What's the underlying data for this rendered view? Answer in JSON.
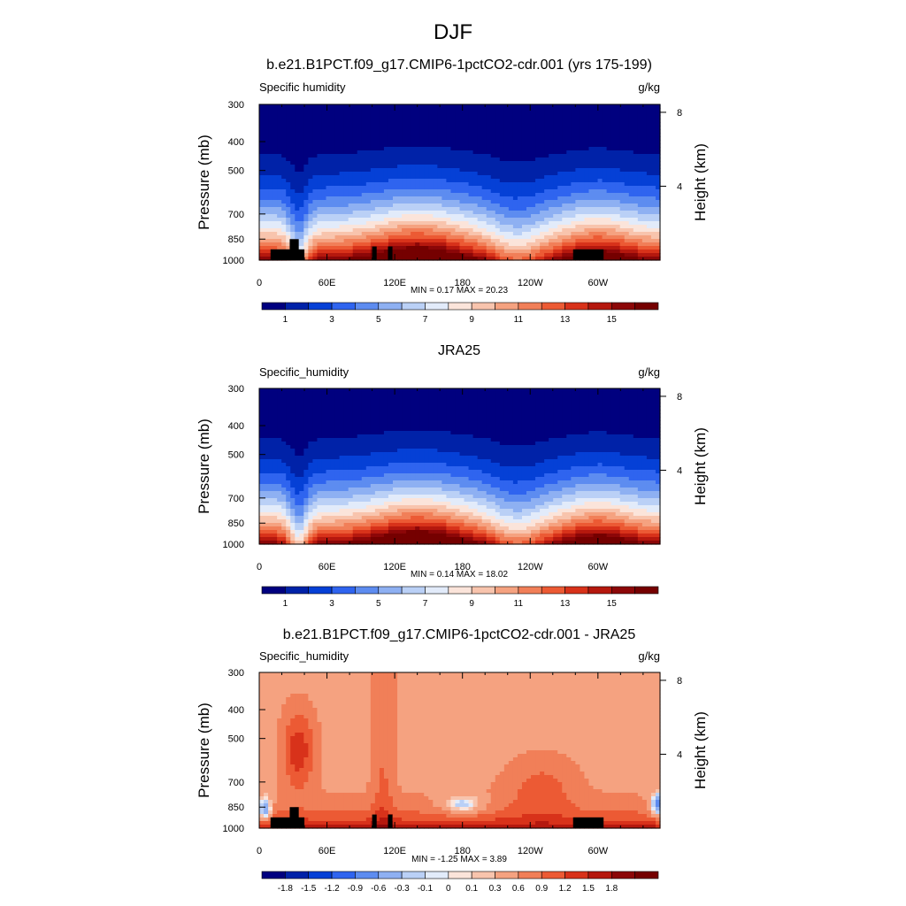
{
  "page_title": "DJF",
  "colorbar_full": {
    "colors": [
      "#00007f",
      "#0022a8",
      "#0540d6",
      "#2f64ef",
      "#5d8cf0",
      "#8eb0f2",
      "#bad0f6",
      "#e2ebfa",
      "#fbe4da",
      "#f8c4ad",
      "#f5a280",
      "#f17f58",
      "#ec5a34",
      "#d8321a",
      "#b5180e",
      "#8c0708",
      "#750000"
    ],
    "ticks": [
      "1",
      "3",
      "5",
      "7",
      "9",
      "11",
      "13",
      "15"
    ]
  },
  "colorbar_diff": {
    "colors": [
      "#00007f",
      "#0022a8",
      "#0540d6",
      "#2f64ef",
      "#5d8cf0",
      "#8eb0f2",
      "#bad0f6",
      "#e2ebfa",
      "#fbe4da",
      "#f8c4ad",
      "#f5a280",
      "#f17f58",
      "#ec5a34",
      "#d8321a",
      "#b5180e",
      "#8c0708",
      "#750000"
    ],
    "ticks": [
      "-1.8",
      "-1.5",
      "-1.2",
      "-0.9",
      "-0.6",
      "-0.3",
      "-0.1",
      "0",
      "0.1",
      "0.3",
      "0.6",
      "0.9",
      "1.2",
      "1.5",
      "1.8"
    ]
  },
  "chart_data": [
    {
      "type": "heatmap",
      "title": "b.e21.B1PCT.f09_g17.CMIP6-1pctCO2-cdr.001 (yrs 175-199)",
      "variable": "Specific humidity",
      "units": "g/kg",
      "ylabel": "Pressure (mb)",
      "ylabel_right": "Height (km)",
      "xticks": [
        "0",
        "60E",
        "120E",
        "180",
        "120W",
        "60W"
      ],
      "xtick_lon": [
        0,
        60,
        120,
        180,
        240,
        300
      ],
      "yticks": [
        "300",
        "400",
        "500",
        "700",
        "850",
        "1000"
      ],
      "ytick_p": [
        300,
        400,
        500,
        700,
        850,
        1000
      ],
      "height_ticks": [
        "8",
        "4"
      ],
      "height_km": [
        8,
        4
      ],
      "ylim": [
        1000,
        300
      ],
      "xlim": [
        0,
        355
      ],
      "stats": "MIN =   0.17  MAX =  20.23",
      "min": 0.17,
      "max": 20.23,
      "mode": "full",
      "topo": [
        [
          10,
          40,
          920
        ],
        [
          27,
          35,
          850
        ],
        [
          100,
          104,
          900
        ],
        [
          114,
          118,
          900
        ],
        [
          278,
          305,
          920
        ]
      ]
    },
    {
      "type": "heatmap",
      "title": "JRA25",
      "variable": "Specific_humidity",
      "units": "g/kg",
      "ylabel": "Pressure (mb)",
      "ylabel_right": "Height (km)",
      "xticks": [
        "0",
        "60E",
        "120E",
        "180",
        "120W",
        "60W"
      ],
      "xtick_lon": [
        0,
        60,
        120,
        180,
        240,
        300
      ],
      "yticks": [
        "300",
        "400",
        "500",
        "700",
        "850",
        "1000"
      ],
      "ytick_p": [
        300,
        400,
        500,
        700,
        850,
        1000
      ],
      "height_ticks": [
        "8",
        "4"
      ],
      "height_km": [
        8,
        4
      ],
      "ylim": [
        1000,
        300
      ],
      "xlim": [
        0,
        355
      ],
      "stats": "MIN =   0.14  MAX =  18.02",
      "min": 0.14,
      "max": 18.02,
      "mode": "full",
      "topo": []
    },
    {
      "type": "heatmap",
      "title": "b.e21.B1PCT.f09_g17.CMIP6-1pctCO2-cdr.001 - JRA25",
      "variable": "Specific_humidity",
      "units": "g/kg",
      "ylabel": "Pressure (mb)",
      "ylabel_right": "Height (km)",
      "xticks": [
        "0",
        "60E",
        "120E",
        "180",
        "120W",
        "60W"
      ],
      "xtick_lon": [
        0,
        60,
        120,
        180,
        240,
        300
      ],
      "yticks": [
        "300",
        "400",
        "500",
        "700",
        "850",
        "1000"
      ],
      "ytick_p": [
        300,
        400,
        500,
        700,
        850,
        1000
      ],
      "height_ticks": [
        "8",
        "4"
      ],
      "height_km": [
        8,
        4
      ],
      "ylim": [
        1000,
        300
      ],
      "xlim": [
        0,
        355
      ],
      "stats": "MIN =  -1.25  MAX =   3.89",
      "min": -1.25,
      "max": 3.89,
      "mode": "diff",
      "topo": [
        [
          10,
          40,
          920
        ],
        [
          27,
          35,
          850
        ],
        [
          100,
          104,
          900
        ],
        [
          114,
          118,
          900
        ],
        [
          278,
          305,
          920
        ]
      ]
    }
  ]
}
